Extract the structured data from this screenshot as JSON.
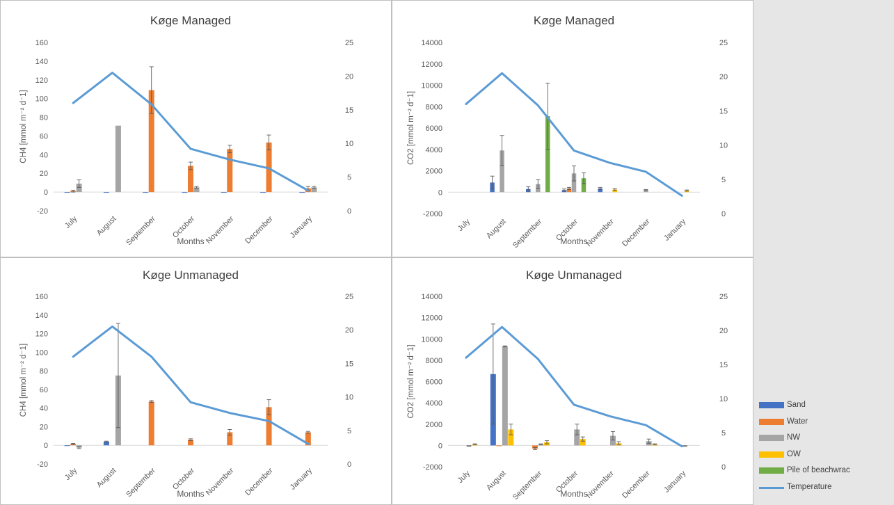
{
  "colors": {
    "Sand": "#4472c4",
    "Water": "#ed7d31",
    "NW": "#a5a5a5",
    "OW": "#ffc000",
    "Pile of beachwrac": "#70ad47",
    "Temperature": "#5b9bd5"
  },
  "legend": {
    "items": [
      {
        "label": "Sand",
        "kind": "bar",
        "color": "#4472c4"
      },
      {
        "label": "Water",
        "kind": "bar",
        "color": "#ed7d31"
      },
      {
        "label": "NW",
        "kind": "bar",
        "color": "#a5a5a5"
      },
      {
        "label": "OW",
        "kind": "bar",
        "color": "#ffc000"
      },
      {
        "label": "Pile of beachwrac",
        "kind": "bar",
        "color": "#70ad47"
      },
      {
        "label": "Temperature",
        "kind": "line",
        "color": "#5b9bd5"
      }
    ]
  },
  "chart_data": [
    {
      "type": "bar",
      "title": "Køge Managed",
      "xlabel": "Months",
      "ylabel": "CH4 [mmol m⁻² d⁻1]",
      "ylim": [
        -20,
        160
      ],
      "yticks": [
        -20,
        0,
        20,
        40,
        60,
        80,
        100,
        120,
        140,
        160
      ],
      "y2lim": [
        0,
        25
      ],
      "y2ticks": [
        0,
        5,
        10,
        15,
        20,
        25
      ],
      "categories": [
        "July",
        "August",
        "September",
        "October",
        "November",
        "December",
        "January"
      ],
      "series": [
        {
          "name": "Sand",
          "values": [
            -0.5,
            -0.5,
            -0.5,
            -0.5,
            -0.5,
            -0.5,
            -0.5
          ],
          "errors": [
            0,
            0,
            0,
            0,
            0,
            0,
            0
          ]
        },
        {
          "name": "Water",
          "values": [
            1,
            0,
            109,
            28,
            46,
            53,
            4
          ],
          "errors": [
            1,
            0,
            25,
            4,
            4,
            8,
            2
          ]
        },
        {
          "name": "NW",
          "values": [
            9,
            71,
            0,
            5,
            0,
            0,
            5
          ],
          "errors": [
            4,
            0,
            0,
            1,
            0,
            0,
            1
          ]
        }
      ],
      "line": {
        "name": "Temperature",
        "values": [
          16,
          20.5,
          15.8,
          9.2,
          7.6,
          6.3,
          3
        ]
      }
    },
    {
      "type": "bar",
      "title": "Køge Managed",
      "xlabel": "Months",
      "ylabel": "CO2 [mmol m⁻² d⁻1]",
      "ylim": [
        -2000,
        14000
      ],
      "yticks": [
        -2000,
        0,
        2000,
        4000,
        6000,
        8000,
        10000,
        12000,
        14000
      ],
      "y2lim": [
        0,
        25
      ],
      "y2ticks": [
        0,
        5,
        10,
        15,
        20,
        25
      ],
      "categories": [
        "July",
        "August",
        "September",
        "October",
        "November",
        "December",
        "January"
      ],
      "series": [
        {
          "name": "Sand",
          "values": [
            0,
            900,
            300,
            200,
            350,
            0,
            0
          ],
          "errors": [
            0,
            600,
            200,
            100,
            100,
            0,
            0
          ]
        },
        {
          "name": "Water",
          "values": [
            0,
            0,
            0,
            350,
            0,
            0,
            0
          ],
          "errors": [
            0,
            0,
            0,
            100,
            0,
            0,
            0
          ]
        },
        {
          "name": "NW",
          "values": [
            0,
            3900,
            750,
            1750,
            0,
            200,
            0
          ],
          "errors": [
            0,
            1400,
            400,
            700,
            0,
            50,
            0
          ]
        },
        {
          "name": "OW",
          "values": [
            0,
            0,
            0,
            0,
            250,
            0,
            150
          ],
          "errors": [
            0,
            0,
            0,
            0,
            80,
            0,
            50
          ]
        },
        {
          "name": "Pile of beachwrac",
          "values": [
            0,
            0,
            7100,
            1300,
            0,
            0,
            0
          ],
          "errors": [
            0,
            0,
            3100,
            500,
            0,
            0,
            0
          ]
        }
      ],
      "line": {
        "name": "Temperature",
        "values": [
          16,
          20.5,
          15.8,
          9.2,
          7.4,
          6.1,
          2.6
        ]
      }
    },
    {
      "type": "bar",
      "title": "Køge Unmanaged",
      "xlabel": "Months",
      "ylabel": "CH4 [mmol m⁻² d⁻1]",
      "ylim": [
        -20,
        160
      ],
      "yticks": [
        -20,
        0,
        20,
        40,
        60,
        80,
        100,
        120,
        140,
        160
      ],
      "y2lim": [
        0,
        25
      ],
      "y2ticks": [
        0,
        5,
        10,
        15,
        20,
        25
      ],
      "categories": [
        "July",
        "August",
        "September",
        "October",
        "November",
        "December",
        "January"
      ],
      "series": [
        {
          "name": "Sand",
          "values": [
            -0.5,
            4,
            0,
            0,
            0,
            0,
            0
          ],
          "errors": [
            0,
            0.5,
            0,
            0,
            0,
            0,
            0
          ]
        },
        {
          "name": "Water",
          "values": [
            1.5,
            0,
            47,
            6,
            14,
            41,
            14
          ],
          "errors": [
            0.5,
            0,
            1,
            1,
            3,
            8,
            1
          ]
        },
        {
          "name": "NW",
          "values": [
            -2.5,
            75,
            0,
            0,
            0,
            0,
            0
          ],
          "errors": [
            1,
            56,
            0,
            0,
            0,
            0,
            0
          ]
        }
      ],
      "line": {
        "name": "Temperature",
        "values": [
          16,
          20.5,
          16,
          9.2,
          7.6,
          6.4,
          3
        ]
      }
    },
    {
      "type": "bar",
      "title": "Køge Unmanaged",
      "xlabel": "Months",
      "ylabel": "CO2 [mmol m⁻² d⁻1]",
      "ylim": [
        -2000,
        14000
      ],
      "yticks": [
        -2000,
        0,
        2000,
        4000,
        6000,
        8000,
        10000,
        12000,
        14000
      ],
      "y2lim": [
        0,
        25
      ],
      "y2ticks": [
        0,
        5,
        10,
        15,
        20,
        25
      ],
      "categories": [
        "July",
        "August",
        "September",
        "October",
        "November",
        "December",
        "January"
      ],
      "series": [
        {
          "name": "Sand",
          "values": [
            0,
            6700,
            0,
            0,
            0,
            0,
            0
          ],
          "errors": [
            0,
            4700,
            0,
            0,
            0,
            0,
            0
          ]
        },
        {
          "name": "Water",
          "values": [
            0,
            -50,
            -300,
            0,
            0,
            0,
            0
          ],
          "errors": [
            0,
            0,
            100,
            0,
            0,
            0,
            0
          ]
        },
        {
          "name": "NW",
          "values": [
            -50,
            9300,
            100,
            1500,
            900,
            400,
            -50
          ],
          "errors": [
            20,
            50,
            50,
            500,
            400,
            200,
            20
          ]
        },
        {
          "name": "OW",
          "values": [
            100,
            1500,
            300,
            600,
            200,
            100,
            0
          ],
          "errors": [
            50,
            500,
            150,
            200,
            150,
            50,
            0
          ]
        }
      ],
      "line": {
        "name": "Temperature",
        "values": [
          16,
          20.5,
          15.8,
          9.1,
          7.4,
          6.1,
          3
        ]
      }
    }
  ]
}
